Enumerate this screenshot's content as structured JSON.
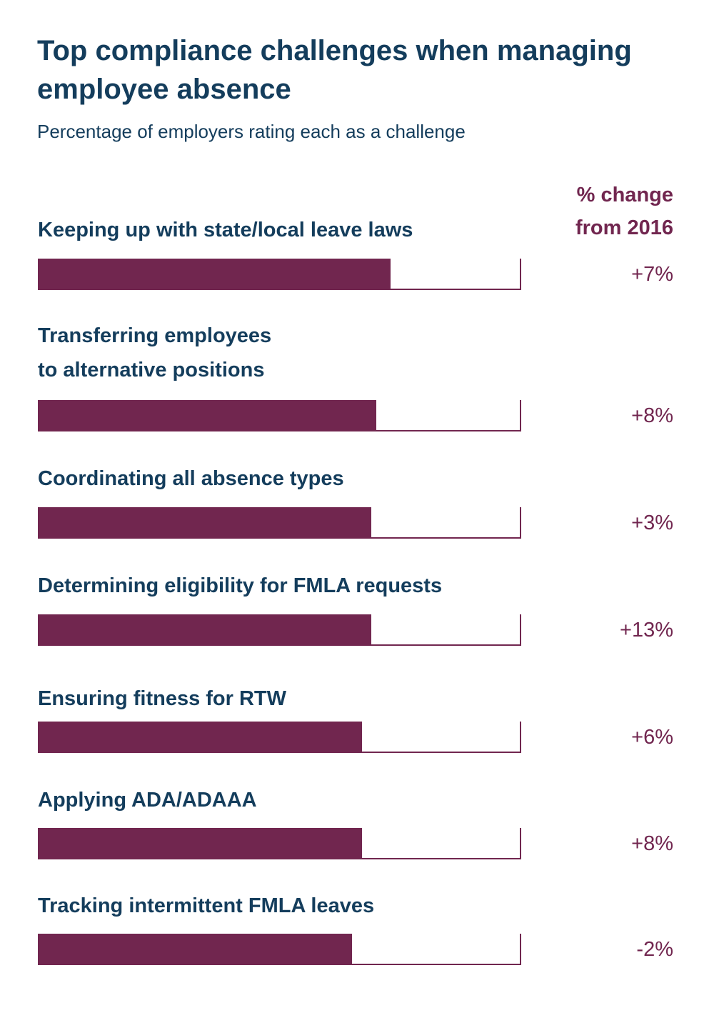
{
  "title": "Top compliance challenges when managing employee absence",
  "subtitle": "Percentage of employers rating each as a challenge",
  "change_header": {
    "line1": "% change",
    "line2": "from 2016"
  },
  "colors": {
    "bar": "#71264f",
    "text": "#143d5c"
  },
  "chart_data": {
    "type": "bar",
    "orientation": "horizontal",
    "title": "Top compliance challenges when managing employee absence",
    "subtitle": "Percentage of employers rating each as a challenge",
    "xlim": [
      0,
      100
    ],
    "categories": [
      "Keeping up with state/local leave laws",
      "Transferring employees to alternative positions",
      "Coordinating all absence types",
      "Determining eligibility for FMLA requests",
      "Ensuring fitness for RTW",
      "Applying ADA/ADAAA",
      "Tracking intermittent FMLA leaves"
    ],
    "values": [
      73,
      70,
      69,
      69,
      67,
      67,
      65
    ],
    "change_from_2016": [
      "+7%",
      "+8%",
      "+3%",
      "+13%",
      "+6%",
      "+8%",
      "-2%"
    ]
  },
  "rows": [
    {
      "label_lines": [
        "Keeping up with state/local leave laws"
      ],
      "change": "+7%"
    },
    {
      "label_lines": [
        "Transferring employees",
        "to alternative positions"
      ],
      "change": "+8%"
    },
    {
      "label_lines": [
        "Coordinating all absence types"
      ],
      "change": "+3%"
    },
    {
      "label_lines": [
        "Determining eligibility for FMLA requests"
      ],
      "change": "+13%"
    },
    {
      "label_lines": [
        "Ensuring fitness for RTW"
      ],
      "change": "+6%"
    },
    {
      "label_lines": [
        "Applying ADA/ADAAA"
      ],
      "change": "+8%"
    },
    {
      "label_lines": [
        "Tracking intermittent FMLA leaves"
      ],
      "change": "-2%"
    }
  ]
}
